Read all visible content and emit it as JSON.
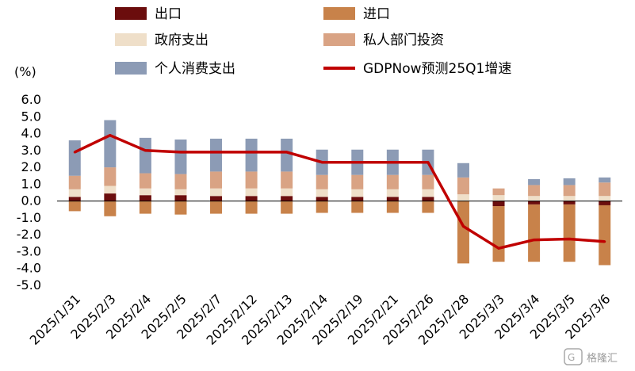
{
  "chart_data": {
    "type": "bar",
    "unit_label": "(%)",
    "categories": [
      "2025/1/31",
      "2025/2/3",
      "2025/2/4",
      "2025/2/5",
      "2025/2/7",
      "2025/2/12",
      "2025/2/13",
      "2025/2/14",
      "2025/2/19",
      "2025/2/21",
      "2025/2/26",
      "2025/2/28",
      "2025/3/3",
      "2025/3/4",
      "2025/3/5",
      "2025/3/6"
    ],
    "ylim": [
      -5.0,
      6.0
    ],
    "yticks": [
      "6.0",
      "5.0",
      "4.0",
      "3.0",
      "2.0",
      "1.0",
      "0.0",
      "-1.0",
      "-2.0",
      "-3.0",
      "-4.0",
      "-5.0"
    ],
    "grid": false,
    "legend_position": "top",
    "series": [
      {
        "name": "出口",
        "kind": "bar",
        "color": "#6b0d0d",
        "values": [
          0.25,
          0.45,
          0.35,
          0.35,
          0.3,
          0.3,
          0.3,
          0.25,
          0.25,
          0.25,
          0.25,
          0.0,
          -0.3,
          -0.2,
          -0.2,
          -0.25
        ]
      },
      {
        "name": "进口",
        "kind": "bar",
        "color": "#c8824a",
        "values": [
          -0.6,
          -0.9,
          -0.75,
          -0.8,
          -0.75,
          -0.75,
          -0.75,
          -0.7,
          -0.7,
          -0.7,
          -0.7,
          -3.7,
          -3.3,
          -3.4,
          -3.4,
          -3.55
        ]
      },
      {
        "name": "政府支出",
        "kind": "bar",
        "color": "#efdfc9",
        "values": [
          0.45,
          0.45,
          0.4,
          0.35,
          0.45,
          0.45,
          0.45,
          0.45,
          0.45,
          0.45,
          0.45,
          0.4,
          0.35,
          0.3,
          0.3,
          0.3
        ]
      },
      {
        "name": "私人部门投资",
        "kind": "bar",
        "color": "#d9a384",
        "values": [
          0.8,
          1.1,
          0.9,
          0.9,
          1.0,
          1.0,
          1.0,
          0.85,
          0.85,
          0.85,
          0.85,
          1.0,
          0.4,
          0.65,
          0.65,
          0.8
        ]
      },
      {
        "name": "个人消费支出",
        "kind": "bar",
        "color": "#8c9bb5",
        "values": [
          2.1,
          2.8,
          2.1,
          2.05,
          1.95,
          1.95,
          1.95,
          1.5,
          1.5,
          1.5,
          1.5,
          0.85,
          0.0,
          0.35,
          0.4,
          0.3
        ]
      },
      {
        "name": "GDPNow预测25Q1增速",
        "kind": "line",
        "color": "#c00000",
        "values": [
          2.9,
          3.9,
          3.0,
          2.9,
          2.9,
          2.9,
          2.9,
          2.3,
          2.3,
          2.3,
          2.3,
          -1.5,
          -2.8,
          -2.3,
          -2.25,
          -2.4
        ]
      }
    ]
  },
  "watermark": {
    "text": "格隆汇"
  }
}
